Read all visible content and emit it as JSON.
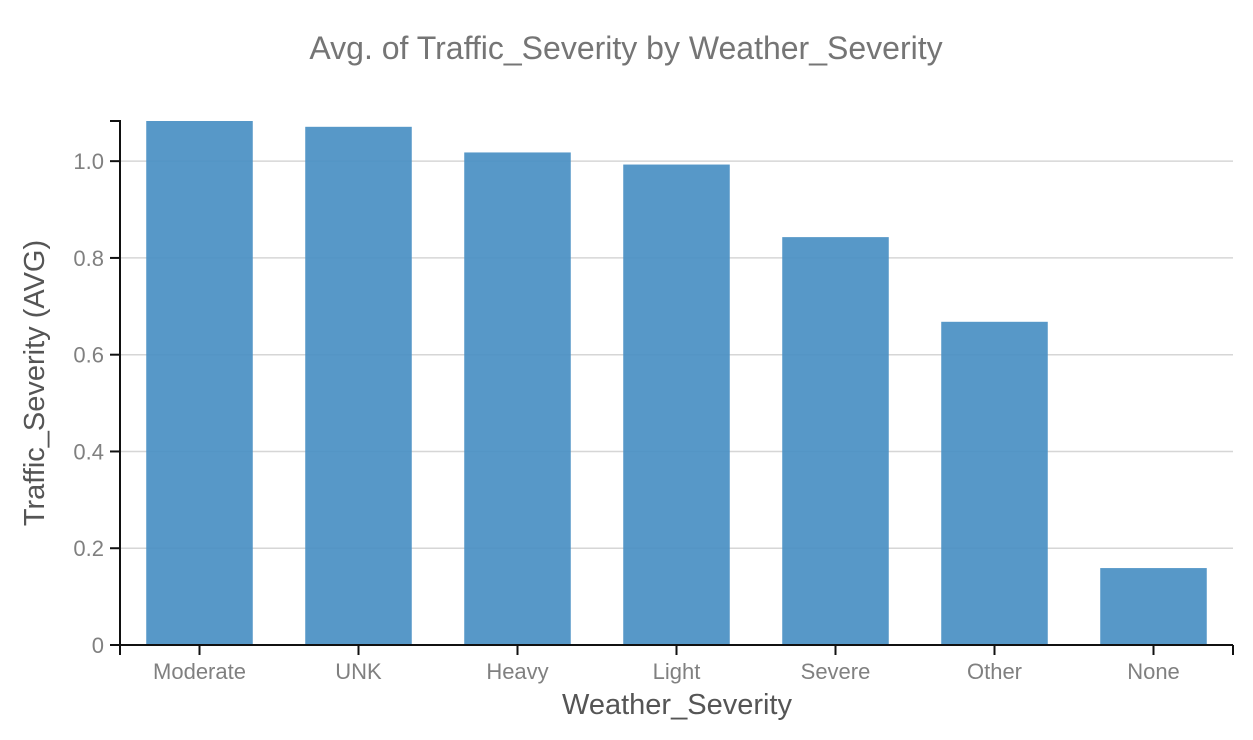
{
  "chart_data": {
    "type": "bar",
    "title": "Avg. of Traffic_Severity by Weather_Severity",
    "xlabel": "Weather_Severity",
    "ylabel": "Traffic_Severity (AVG)",
    "categories": [
      "Moderate",
      "UNK",
      "Heavy",
      "Light",
      "Severe",
      "Other",
      "None"
    ],
    "series": [
      {
        "values": [
          1.083,
          1.071,
          1.018,
          0.993,
          0.843,
          0.668,
          0.159
        ]
      }
    ],
    "ylim": [
      0,
      1.083
    ],
    "yticks": [
      0,
      0.2,
      0.4,
      0.6,
      0.8,
      1.0
    ],
    "ytick_labels": [
      "0",
      "0.2",
      "0.4",
      "0.6",
      "0.8",
      "1.0"
    ],
    "grid": true,
    "legend": "none",
    "bar_color": "#4a90c4"
  }
}
